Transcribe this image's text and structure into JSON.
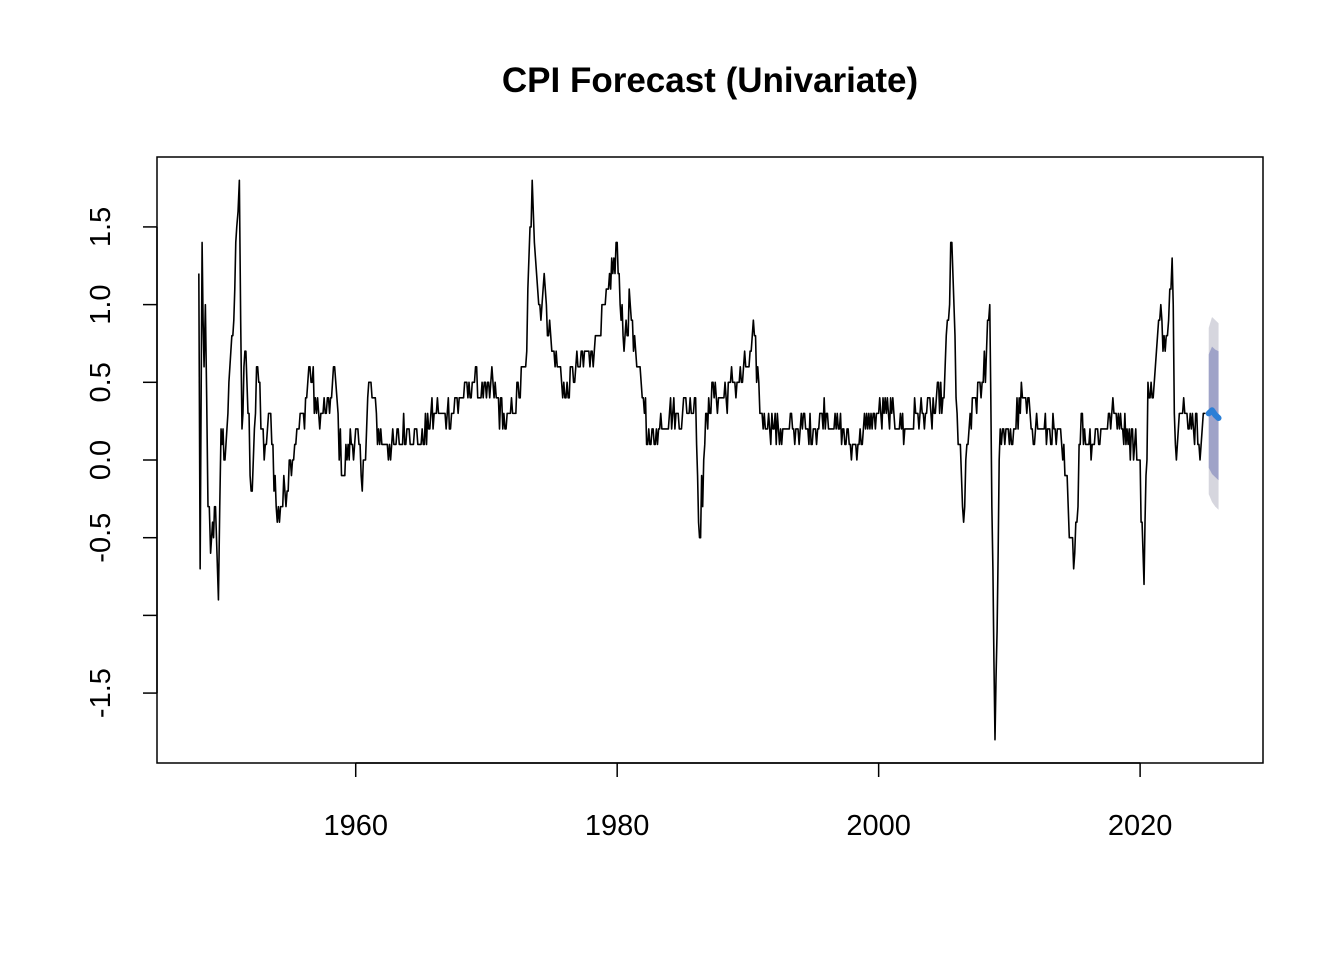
{
  "chart_data": {
    "type": "line",
    "title": "CPI Forecast (Univariate)",
    "xlabel": "",
    "ylabel": "",
    "xlim": [
      1944.8,
      2029.4
    ],
    "ylim": [
      -1.95,
      1.95
    ],
    "grid": false,
    "legend": "none",
    "x_ticks": [
      1960,
      1980,
      2000,
      2020
    ],
    "x_tick_labels": [
      "1960",
      "1980",
      "2000",
      "2020"
    ],
    "y_ticks": [
      -1.5,
      -1.0,
      -0.5,
      0.0,
      0.5,
      1.0,
      1.5
    ],
    "y_tick_labels": [
      "-1.5",
      "",
      "-0.5",
      "0.0",
      "0.5",
      "1.0",
      "1.5"
    ],
    "colors": {
      "history": "#000000",
      "forecast_mean": "#2b7fd6",
      "band_80": "#9fa3c8",
      "band_95": "#d6d6de"
    },
    "history": {
      "start_year": 1948,
      "frequency": "monthly",
      "anchors": [
        [
          1948.0,
          1.2
        ],
        [
          1948.1,
          -0.7
        ],
        [
          1948.25,
          1.4
        ],
        [
          1948.4,
          0.6
        ],
        [
          1948.5,
          1.0
        ],
        [
          1948.7,
          -0.3
        ],
        [
          1948.9,
          -0.6
        ],
        [
          1949.2,
          -0.3
        ],
        [
          1949.5,
          -0.9
        ],
        [
          1949.7,
          0.2
        ],
        [
          1950.0,
          0.0
        ],
        [
          1950.3,
          0.5
        ],
        [
          1950.6,
          0.8
        ],
        [
          1950.9,
          1.5
        ],
        [
          1951.1,
          1.8
        ],
        [
          1951.3,
          0.2
        ],
        [
          1951.6,
          0.7
        ],
        [
          1952.0,
          -0.2
        ],
        [
          1952.5,
          0.6
        ],
        [
          1953.0,
          0.0
        ],
        [
          1953.5,
          0.3
        ],
        [
          1954.0,
          -0.4
        ],
        [
          1955.0,
          0.0
        ],
        [
          1956.0,
          0.3
        ],
        [
          1956.5,
          0.6
        ],
        [
          1957.0,
          0.3
        ],
        [
          1958.0,
          0.3
        ],
        [
          1958.3,
          0.6
        ],
        [
          1959.0,
          -0.1
        ],
        [
          1960.0,
          0.2
        ],
        [
          1960.5,
          -0.2
        ],
        [
          1961.0,
          0.5
        ],
        [
          1962.0,
          0.1
        ],
        [
          1963.0,
          0.1
        ],
        [
          1964.0,
          0.2
        ],
        [
          1965.0,
          0.1
        ],
        [
          1966.0,
          0.3
        ],
        [
          1967.0,
          0.3
        ],
        [
          1968.0,
          0.4
        ],
        [
          1969.0,
          0.5
        ],
        [
          1970.0,
          0.4
        ],
        [
          1970.5,
          0.5
        ],
        [
          1971.5,
          0.2
        ],
        [
          1972.0,
          0.3
        ],
        [
          1973.0,
          0.6
        ],
        [
          1973.5,
          1.8
        ],
        [
          1974.0,
          1.0
        ],
        [
          1974.5,
          1.1
        ],
        [
          1975.0,
          0.7
        ],
        [
          1975.5,
          0.6
        ],
        [
          1976.0,
          0.4
        ],
        [
          1977.0,
          0.6
        ],
        [
          1978.0,
          0.7
        ],
        [
          1978.5,
          0.8
        ],
        [
          1979.0,
          1.0
        ],
        [
          1979.5,
          1.1
        ],
        [
          1980.0,
          1.4
        ],
        [
          1980.3,
          0.9
        ],
        [
          1980.6,
          0.8
        ],
        [
          1981.0,
          1.0
        ],
        [
          1981.5,
          0.6
        ],
        [
          1982.0,
          0.4
        ],
        [
          1982.5,
          0.1
        ],
        [
          1983.0,
          0.2
        ],
        [
          1984.0,
          0.3
        ],
        [
          1985.0,
          0.3
        ],
        [
          1986.0,
          0.4
        ],
        [
          1986.3,
          -0.5
        ],
        [
          1986.7,
          0.1
        ],
        [
          1987.0,
          0.4
        ],
        [
          1988.0,
          0.4
        ],
        [
          1989.0,
          0.5
        ],
        [
          1990.0,
          0.6
        ],
        [
          1990.5,
          0.8
        ],
        [
          1991.0,
          0.3
        ],
        [
          1992.0,
          0.2
        ],
        [
          1993.0,
          0.2
        ],
        [
          1994.0,
          0.2
        ],
        [
          1995.0,
          0.2
        ],
        [
          1996.0,
          0.3
        ],
        [
          1997.0,
          0.2
        ],
        [
          1998.0,
          0.1
        ],
        [
          1999.0,
          0.2
        ],
        [
          2000.0,
          0.3
        ],
        [
          2001.0,
          0.3
        ],
        [
          2002.0,
          0.2
        ],
        [
          2003.0,
          0.3
        ],
        [
          2004.0,
          0.3
        ],
        [
          2005.0,
          0.4
        ],
        [
          2005.6,
          1.4
        ],
        [
          2006.0,
          0.3
        ],
        [
          2006.5,
          -0.4
        ],
        [
          2007.0,
          0.3
        ],
        [
          2008.0,
          0.5
        ],
        [
          2008.5,
          1.0
        ],
        [
          2008.9,
          -1.8
        ],
        [
          2009.3,
          0.2
        ],
        [
          2010.0,
          0.1
        ],
        [
          2011.0,
          0.4
        ],
        [
          2012.0,
          0.2
        ],
        [
          2013.0,
          0.2
        ],
        [
          2014.0,
          0.1
        ],
        [
          2014.5,
          -0.3
        ],
        [
          2015.0,
          -0.6
        ],
        [
          2015.5,
          0.3
        ],
        [
          2016.0,
          0.1
        ],
        [
          2017.0,
          0.2
        ],
        [
          2018.0,
          0.3
        ],
        [
          2019.0,
          0.2
        ],
        [
          2020.0,
          0.0
        ],
        [
          2020.3,
          -0.8
        ],
        [
          2020.6,
          0.5
        ],
        [
          2021.0,
          0.4
        ],
        [
          2021.5,
          0.9
        ],
        [
          2022.0,
          0.8
        ],
        [
          2022.45,
          1.3
        ],
        [
          2022.7,
          0.1
        ],
        [
          2023.0,
          0.3
        ],
        [
          2023.5,
          0.3
        ],
        [
          2024.0,
          0.3
        ],
        [
          2024.5,
          0.1
        ],
        [
          2025.0,
          0.3
        ]
      ]
    },
    "forecast": {
      "x": [
        2025.25,
        2025.5,
        2025.75,
        2026.0
      ],
      "mean": [
        0.3,
        0.32,
        0.29,
        0.27
      ],
      "lo80": [
        -0.05,
        -0.09,
        -0.11,
        -0.13
      ],
      "hi80": [
        0.68,
        0.73,
        0.71,
        0.7
      ],
      "lo95": [
        -0.22,
        -0.27,
        -0.3,
        -0.32
      ],
      "hi95": [
        0.85,
        0.92,
        0.9,
        0.88
      ]
    }
  }
}
